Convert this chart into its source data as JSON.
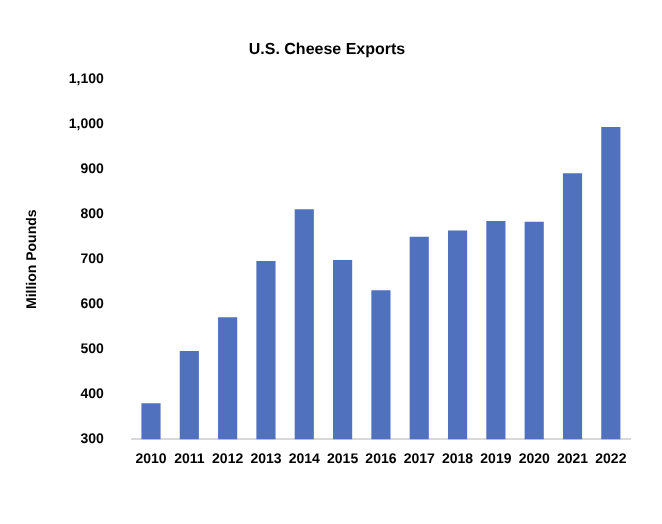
{
  "chart_data": {
    "type": "bar",
    "title": "U.S. Cheese Exports",
    "ylabel": "Million Pounds",
    "categories": [
      "2010",
      "2011",
      "2012",
      "2013",
      "2014",
      "2015",
      "2016",
      "2017",
      "2018",
      "2019",
      "2020",
      "2021",
      "2022"
    ],
    "values": [
      380,
      496,
      571,
      696,
      811,
      698,
      631,
      750,
      764,
      785,
      783,
      891,
      994
    ],
    "color": "#4f71be",
    "ylim": [
      300,
      1100
    ],
    "yticks": [
      300,
      400,
      500,
      600,
      700,
      800,
      900,
      {
        "value": 1000,
        "label": "1,000"
      },
      {
        "value": 1100,
        "label": "1,100"
      }
    ],
    "grid": false,
    "legend": false
  }
}
